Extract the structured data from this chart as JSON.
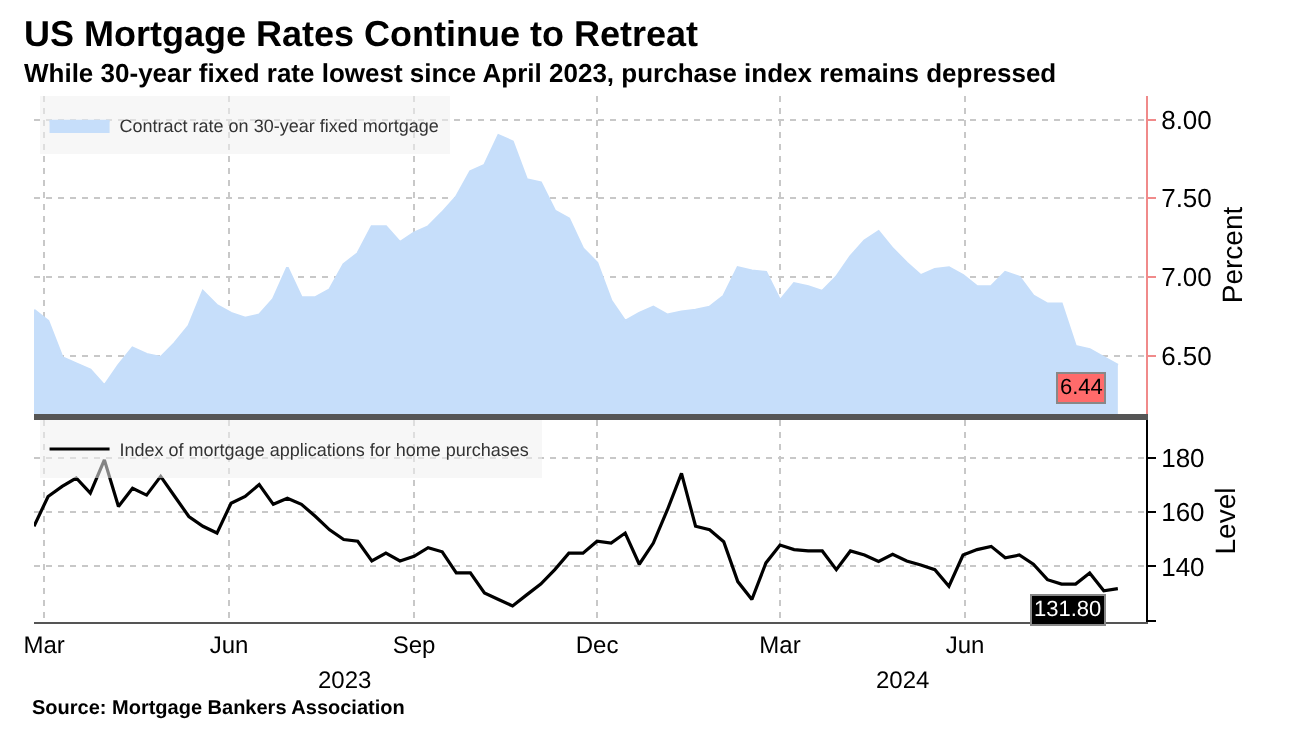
{
  "chart_data": [
    {
      "type": "area",
      "title": "US Mortgage Rates Continue to Retreat",
      "subtitle": "While 30-year fixed rate lowest since April 2023, purchase index remains depressed",
      "ylabel": "Percent",
      "x": [
        "2023-02-24",
        "2023-03-03",
        "2023-03-10",
        "2023-03-17",
        "2023-03-24",
        "2023-03-31",
        "2023-04-07",
        "2023-04-14",
        "2023-04-21",
        "2023-04-28",
        "2023-05-05",
        "2023-05-12",
        "2023-05-19",
        "2023-05-26",
        "2023-06-02",
        "2023-06-09",
        "2023-06-16",
        "2023-06-23",
        "2023-06-30",
        "2023-07-07",
        "2023-07-14",
        "2023-07-21",
        "2023-07-28",
        "2023-08-04",
        "2023-08-11",
        "2023-08-18",
        "2023-08-25",
        "2023-09-01",
        "2023-09-08",
        "2023-09-15",
        "2023-09-22",
        "2023-09-29",
        "2023-10-06",
        "2023-10-13",
        "2023-10-20",
        "2023-10-27",
        "2023-11-03",
        "2023-11-10",
        "2023-11-17",
        "2023-11-24",
        "2023-12-01",
        "2023-12-08",
        "2023-12-15",
        "2023-12-22",
        "2023-12-29",
        "2024-01-05",
        "2024-01-12",
        "2024-01-19",
        "2024-01-26",
        "2024-02-02",
        "2024-02-09",
        "2024-02-16",
        "2024-02-23",
        "2024-03-01",
        "2024-03-08",
        "2024-03-15",
        "2024-03-22",
        "2024-03-29",
        "2024-04-05",
        "2024-04-12",
        "2024-04-19",
        "2024-04-26",
        "2024-05-03",
        "2024-05-10",
        "2024-05-17",
        "2024-05-24",
        "2024-05-31",
        "2024-06-07",
        "2024-06-14",
        "2024-06-21",
        "2024-06-28",
        "2024-07-05",
        "2024-07-12",
        "2024-07-19",
        "2024-07-26",
        "2024-08-02",
        "2024-08-09",
        "2024-08-16"
      ],
      "series": [
        {
          "name": "Contract rate on 30-year fixed mortgage",
          "color": "#c6defa",
          "values": [
            6.79,
            6.72,
            6.49,
            6.45,
            6.41,
            6.31,
            6.44,
            6.55,
            6.51,
            6.49,
            6.58,
            6.69,
            6.91,
            6.82,
            6.77,
            6.74,
            6.76,
            6.86,
            7.06,
            6.87,
            6.87,
            6.92,
            7.08,
            7.15,
            7.32,
            7.32,
            7.22,
            7.28,
            7.32,
            7.41,
            7.51,
            7.67,
            7.71,
            7.9,
            7.86,
            7.62,
            7.6,
            7.42,
            7.37,
            7.18,
            7.09,
            6.85,
            6.72,
            6.77,
            6.81,
            6.76,
            6.78,
            6.79,
            6.81,
            6.88,
            7.06,
            7.04,
            7.03,
            6.85,
            6.96,
            6.94,
            6.91,
            7.0,
            7.13,
            7.23,
            7.29,
            7.18,
            7.09,
            7.01,
            7.05,
            7.06,
            7.01,
            6.94,
            6.94,
            7.03,
            7.0,
            6.88,
            6.83,
            6.83,
            6.56,
            6.54,
            6.49,
            6.44
          ],
          "value_labels": [
            null,
            null,
            null,
            null,
            null,
            null,
            null,
            null,
            null,
            null,
            null,
            null,
            null,
            null,
            null,
            null,
            null,
            null,
            null,
            null,
            null,
            null,
            null,
            null,
            null,
            null,
            null,
            null,
            null,
            null,
            null,
            null,
            null,
            null,
            null,
            null,
            null,
            null,
            null,
            null,
            null,
            null,
            null,
            null,
            null,
            null,
            null,
            null,
            null,
            null,
            null,
            null,
            null,
            null,
            null,
            null,
            null,
            null,
            null,
            null,
            null,
            null,
            null,
            null,
            null,
            null,
            null,
            null,
            null,
            null,
            null,
            null,
            null,
            null,
            null,
            null,
            null,
            "6.44"
          ]
        }
      ],
      "xlim": [
        "2023-02-24",
        "2024-08-30"
      ],
      "xticks": [
        {
          "value": "2023-03-01",
          "label": null
        },
        {
          "value": "2023-06-01",
          "label": null
        },
        {
          "value": "2023-09-01",
          "label": null
        },
        {
          "value": "2023-12-01",
          "label": null
        },
        {
          "value": "2024-03-01",
          "label": null
        },
        {
          "value": "2024-06-01",
          "label": null
        }
      ],
      "ylim": [
        6.13,
        8.15
      ],
      "yticks": [
        {
          "value": 6.5,
          "label": "6.50"
        },
        {
          "value": 7.0,
          "label": "7.00"
        },
        {
          "value": 7.5,
          "label": "7.50"
        },
        {
          "value": 8.0,
          "label": "8.00"
        }
      ],
      "tick_labels": "y",
      "grid": true,
      "legend": "top left"
    },
    {
      "type": "line",
      "ylabel": "Level",
      "x": [
        "2023-02-24",
        "2023-03-03",
        "2023-03-10",
        "2023-03-17",
        "2023-03-24",
        "2023-03-31",
        "2023-04-07",
        "2023-04-14",
        "2023-04-21",
        "2023-04-28",
        "2023-05-05",
        "2023-05-12",
        "2023-05-19",
        "2023-05-26",
        "2023-06-02",
        "2023-06-09",
        "2023-06-16",
        "2023-06-23",
        "2023-06-30",
        "2023-07-07",
        "2023-07-14",
        "2023-07-21",
        "2023-07-28",
        "2023-08-04",
        "2023-08-11",
        "2023-08-18",
        "2023-08-25",
        "2023-09-01",
        "2023-09-08",
        "2023-09-15",
        "2023-09-22",
        "2023-09-29",
        "2023-10-06",
        "2023-10-13",
        "2023-10-20",
        "2023-10-27",
        "2023-11-03",
        "2023-11-10",
        "2023-11-17",
        "2023-11-24",
        "2023-12-01",
        "2023-12-08",
        "2023-12-15",
        "2023-12-22",
        "2023-12-29",
        "2024-01-05",
        "2024-01-12",
        "2024-01-19",
        "2024-01-26",
        "2024-02-02",
        "2024-02-09",
        "2024-02-16",
        "2024-02-23",
        "2024-03-01",
        "2024-03-08",
        "2024-03-15",
        "2024-03-22",
        "2024-03-29",
        "2024-04-05",
        "2024-04-12",
        "2024-04-19",
        "2024-04-26",
        "2024-05-03",
        "2024-05-10",
        "2024-05-17",
        "2024-05-24",
        "2024-05-31",
        "2024-06-07",
        "2024-06-14",
        "2024-06-21",
        "2024-06-28",
        "2024-07-05",
        "2024-07-12",
        "2024-07-19",
        "2024-07-26",
        "2024-08-02",
        "2024-08-09",
        "2024-08-16"
      ],
      "series": [
        {
          "name": "Index of mortgage applications for home purchases",
          "color": "#000000",
          "values": [
            154.8,
            165.8,
            169.5,
            172.6,
            167.0,
            179.3,
            162.1,
            168.8,
            166.3,
            173.2,
            165.8,
            158.4,
            154.8,
            152.3,
            163.3,
            165.8,
            170.2,
            162.9,
            165.1,
            162.9,
            158.4,
            153.5,
            149.9,
            149.3,
            142.0,
            144.9,
            142.0,
            143.7,
            146.9,
            145.4,
            137.6,
            137.6,
            130.2,
            127.8,
            125.4,
            129.5,
            133.5,
            138.8,
            144.9,
            144.9,
            149.3,
            148.6,
            152.3,
            140.8,
            148.6,
            160.9,
            174.3,
            154.8,
            153.5,
            149.1,
            134.4,
            127.8,
            141.3,
            147.9,
            146.2,
            145.7,
            145.7,
            138.8,
            145.7,
            144.2,
            141.8,
            144.5,
            142.0,
            140.5,
            138.8,
            132.7,
            144.2,
            146.2,
            147.4,
            143.2,
            144.2,
            140.8,
            135.1,
            133.5,
            133.5,
            137.6,
            131.0,
            131.8
          ],
          "value_labels": [
            null,
            null,
            null,
            null,
            null,
            null,
            null,
            null,
            null,
            null,
            null,
            null,
            null,
            null,
            null,
            null,
            null,
            null,
            null,
            null,
            null,
            null,
            null,
            null,
            null,
            null,
            null,
            null,
            null,
            null,
            null,
            null,
            null,
            null,
            null,
            null,
            null,
            null,
            null,
            null,
            null,
            null,
            null,
            null,
            null,
            null,
            null,
            null,
            null,
            null,
            null,
            null,
            null,
            null,
            null,
            null,
            null,
            null,
            null,
            null,
            null,
            null,
            null,
            null,
            null,
            null,
            null,
            null,
            null,
            null,
            null,
            null,
            null,
            null,
            null,
            null,
            null,
            "131.80"
          ]
        }
      ],
      "xlim": [
        "2023-02-24",
        "2024-08-30"
      ],
      "xticks": [
        {
          "value": "2023-03-01",
          "label": "Mar"
        },
        {
          "value": "2023-06-01",
          "label": "Jun"
        },
        {
          "value": "2023-09-01",
          "label": "Sep"
        },
        {
          "value": "2023-12-01",
          "label": "Dec"
        },
        {
          "value": "2024-03-01",
          "label": "Mar"
        },
        {
          "value": "2024-06-01",
          "label": "Jun"
        }
      ],
      "ylim": [
        119.5,
        194
      ],
      "yticks": [
        {
          "value": 120,
          "label": null
        },
        140,
        160,
        180
      ],
      "grid": true,
      "legend": "top left",
      "annotations": [
        "2023",
        "2024",
        "Source: Mortgage Bankers Association"
      ]
    }
  ]
}
